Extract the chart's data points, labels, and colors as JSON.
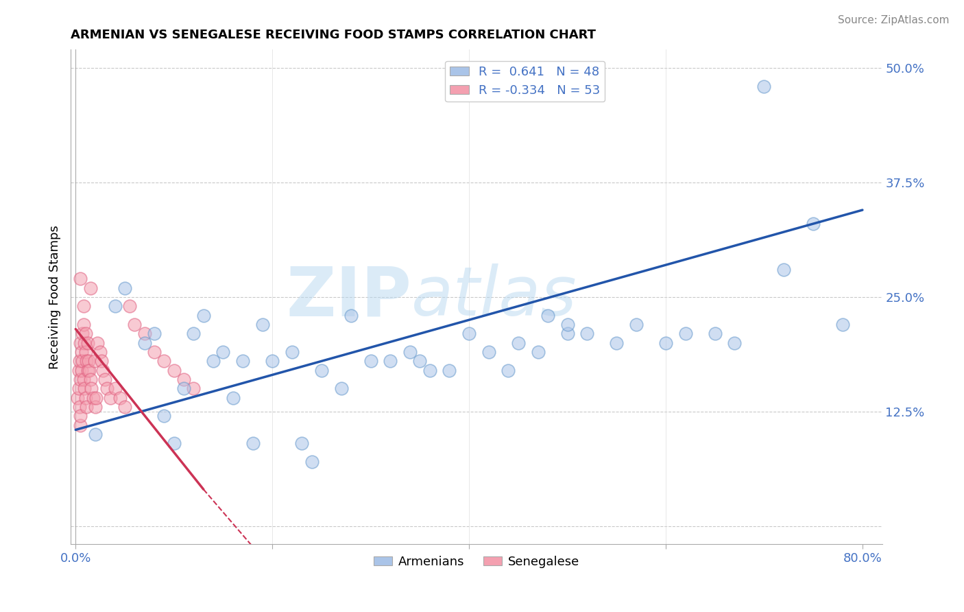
{
  "title": "ARMENIAN VS SENEGALESE RECEIVING FOOD STAMPS CORRELATION CHART",
  "source": "Source: ZipAtlas.com",
  "ylabel": "Receiving Food Stamps",
  "xlim": [
    -0.005,
    0.82
  ],
  "ylim": [
    -0.02,
    0.52
  ],
  "ytick_positions": [
    0.0,
    0.125,
    0.25,
    0.375,
    0.5
  ],
  "ytick_labels": [
    "",
    "12.5%",
    "25.0%",
    "37.5%",
    "50.0%"
  ],
  "xtick_positions": [
    0.0,
    0.2,
    0.4,
    0.6,
    0.8
  ],
  "xtick_labels": [
    "0.0%",
    "",
    "",
    "",
    "80.0%"
  ],
  "armenian_color": "#aac4e8",
  "armenian_edge": "#6699cc",
  "senegalese_color": "#f4a0b0",
  "senegalese_edge": "#e06080",
  "trendline_armenian_color": "#2255aa",
  "trendline_senegalese_color": "#cc3355",
  "R_armenian": 0.641,
  "N_armenian": 48,
  "R_senegalese": -0.334,
  "N_senegalese": 53,
  "watermark": "ZIPatlas",
  "grid_color": "#bbbbbb",
  "background_color": "#ffffff",
  "arm_trendline_x0": 0.0,
  "arm_trendline_y0": 0.105,
  "arm_trendline_x1": 0.8,
  "arm_trendline_y1": 0.345,
  "sen_trendline_x0": 0.0,
  "sen_trendline_y0": 0.215,
  "sen_trendline_x1": 0.13,
  "sen_trendline_y1": 0.04,
  "armenian_x": [
    0.02,
    0.04,
    0.05,
    0.07,
    0.08,
    0.09,
    0.1,
    0.11,
    0.12,
    0.13,
    0.14,
    0.15,
    0.16,
    0.17,
    0.18,
    0.19,
    0.2,
    0.22,
    0.23,
    0.24,
    0.25,
    0.27,
    0.28,
    0.3,
    0.32,
    0.34,
    0.36,
    0.38,
    0.4,
    0.42,
    0.44,
    0.45,
    0.47,
    0.48,
    0.5,
    0.52,
    0.55,
    0.57,
    0.6,
    0.62,
    0.65,
    0.67,
    0.7,
    0.72,
    0.75,
    0.78,
    0.5,
    0.35
  ],
  "armenian_y": [
    0.1,
    0.24,
    0.26,
    0.2,
    0.21,
    0.12,
    0.09,
    0.15,
    0.21,
    0.23,
    0.18,
    0.19,
    0.14,
    0.18,
    0.09,
    0.22,
    0.18,
    0.19,
    0.09,
    0.07,
    0.17,
    0.15,
    0.23,
    0.18,
    0.18,
    0.19,
    0.17,
    0.17,
    0.21,
    0.19,
    0.17,
    0.2,
    0.19,
    0.23,
    0.21,
    0.21,
    0.2,
    0.22,
    0.2,
    0.21,
    0.21,
    0.2,
    0.48,
    0.28,
    0.33,
    0.22,
    0.22,
    0.18
  ],
  "senegalese_x": [
    0.002,
    0.003,
    0.003,
    0.004,
    0.004,
    0.005,
    0.005,
    0.005,
    0.005,
    0.006,
    0.006,
    0.007,
    0.007,
    0.008,
    0.008,
    0.009,
    0.009,
    0.01,
    0.01,
    0.01,
    0.011,
    0.011,
    0.012,
    0.012,
    0.013,
    0.014,
    0.015,
    0.016,
    0.018,
    0.019,
    0.02,
    0.021,
    0.022,
    0.025,
    0.026,
    0.028,
    0.03,
    0.032,
    0.035,
    0.04,
    0.045,
    0.05,
    0.055,
    0.06,
    0.07,
    0.08,
    0.09,
    0.1,
    0.11,
    0.12,
    0.015,
    0.008,
    0.005
  ],
  "senegalese_y": [
    0.14,
    0.15,
    0.17,
    0.13,
    0.18,
    0.11,
    0.12,
    0.16,
    0.2,
    0.17,
    0.19,
    0.18,
    0.21,
    0.16,
    0.22,
    0.15,
    0.2,
    0.14,
    0.19,
    0.21,
    0.18,
    0.13,
    0.17,
    0.2,
    0.18,
    0.17,
    0.16,
    0.15,
    0.14,
    0.18,
    0.13,
    0.14,
    0.2,
    0.19,
    0.18,
    0.17,
    0.16,
    0.15,
    0.14,
    0.15,
    0.14,
    0.13,
    0.24,
    0.22,
    0.21,
    0.19,
    0.18,
    0.17,
    0.16,
    0.15,
    0.26,
    0.24,
    0.27
  ]
}
